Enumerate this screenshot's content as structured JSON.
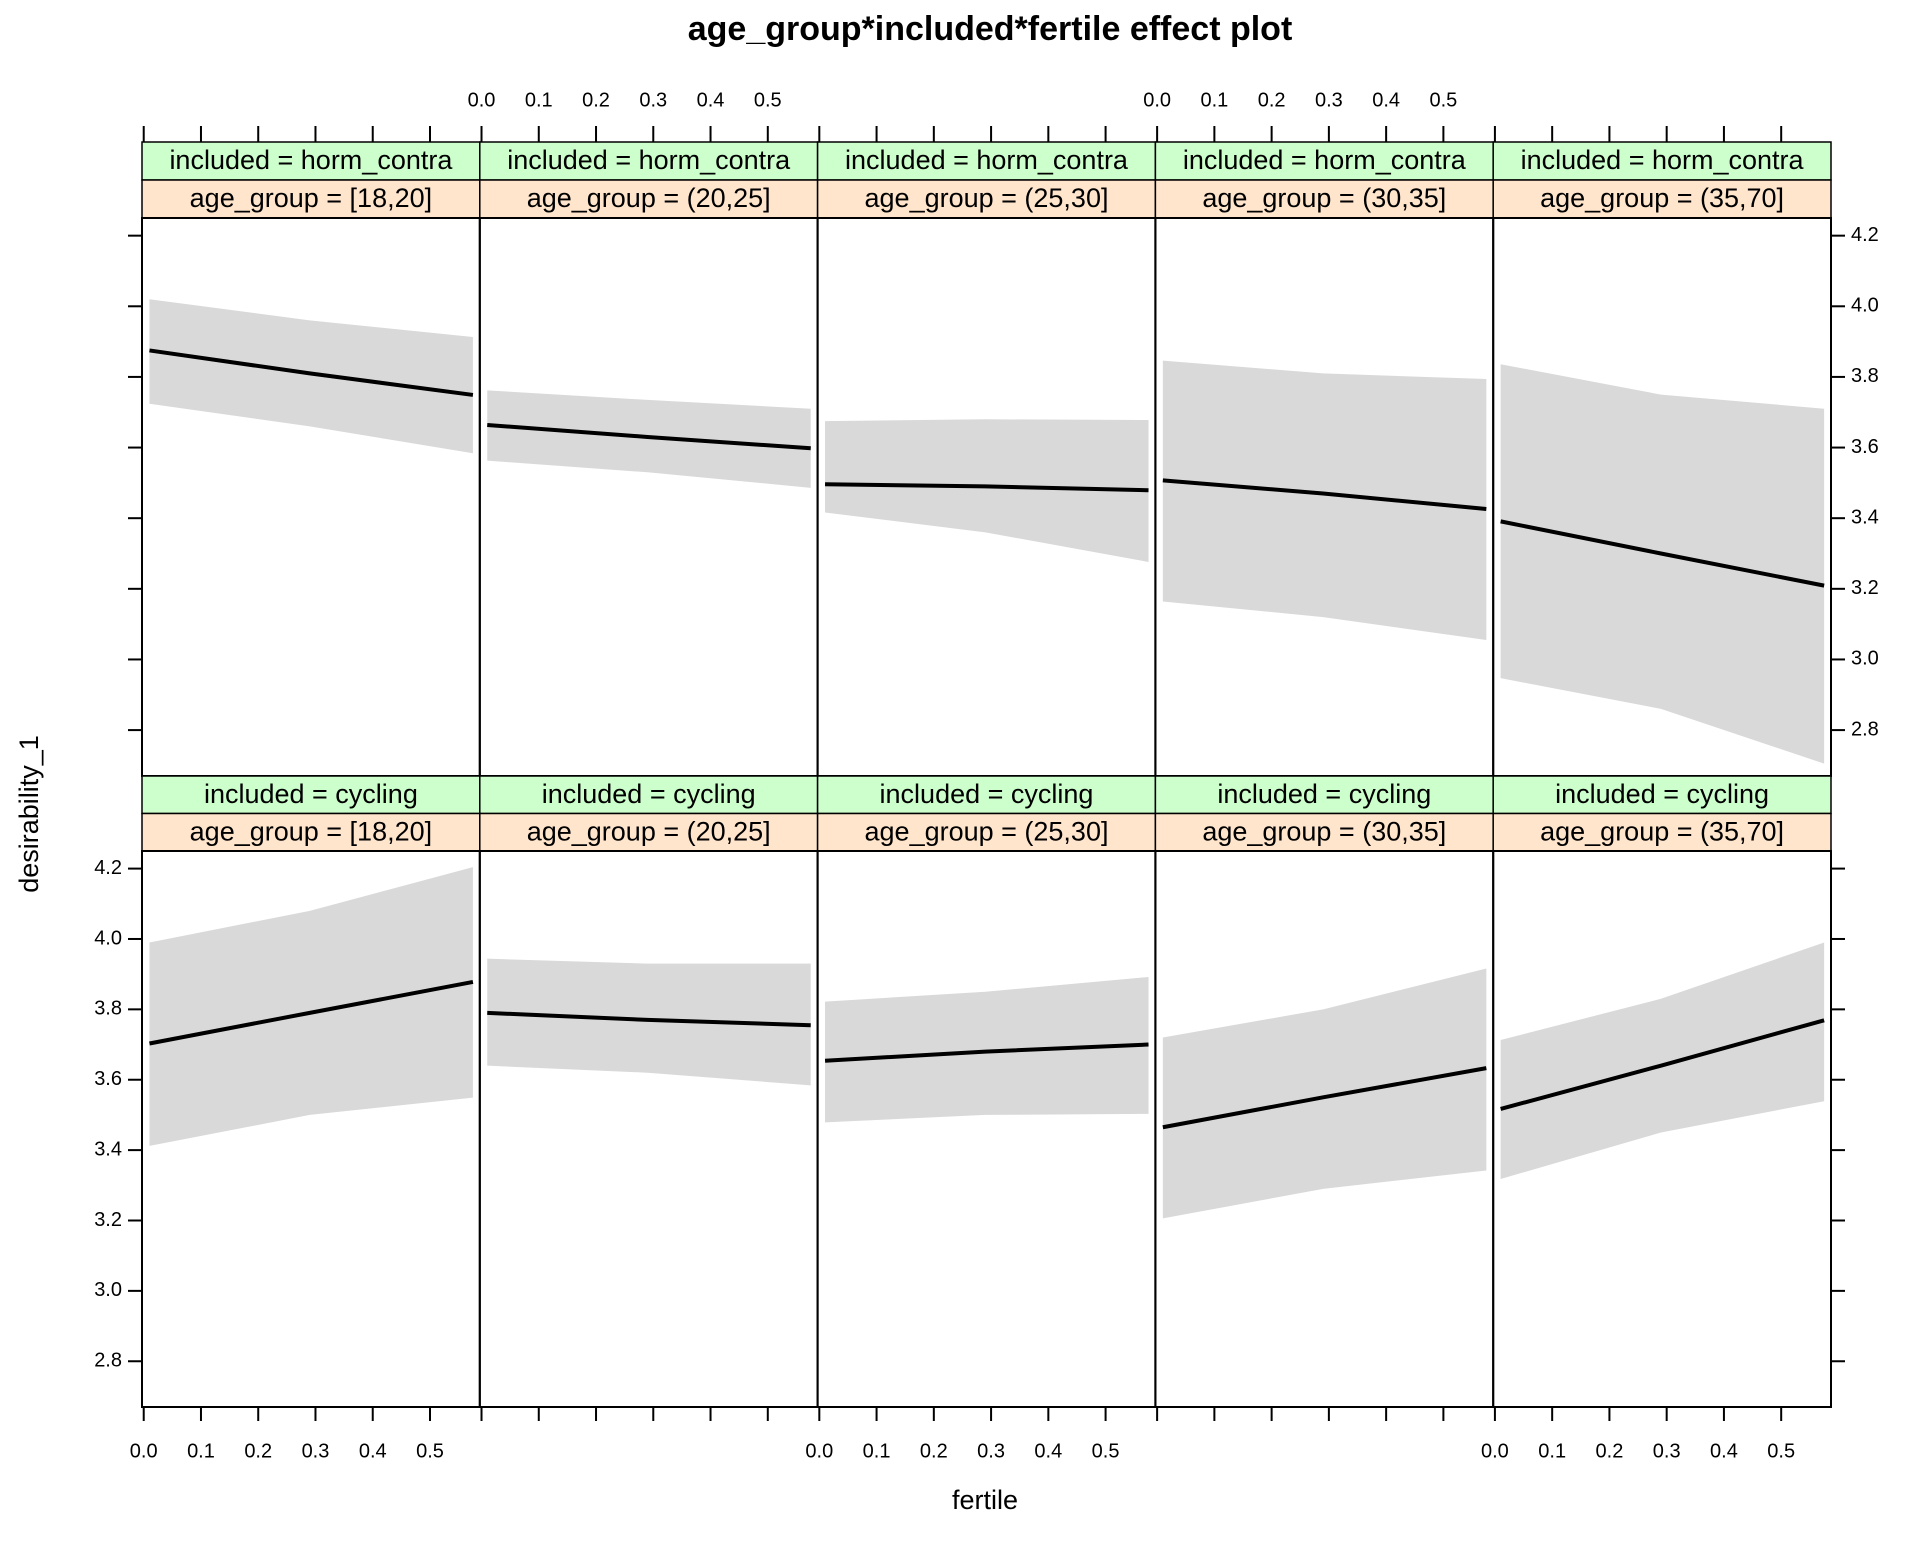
{
  "chart_data": {
    "type": "line",
    "title": "age_group*included*fertile effect plot",
    "xlabel": "fertile",
    "ylabel": "desirability_1",
    "xlim": [
      -0.003,
      0.587
    ],
    "ylim": [
      2.67,
      4.25
    ],
    "xticks": [
      {
        "value": 0,
        "label": "0.0"
      },
      0.1,
      0.2,
      0.3,
      0.4,
      0.5
    ],
    "yticks": [
      2.8,
      {
        "value": 3,
        "label": "3.0"
      },
      3.2,
      3.4,
      3.6,
      3.8,
      {
        "value": 4,
        "label": "4.0"
      },
      4.2
    ],
    "line_color": "#000000",
    "band_color": "#d9d9d9",
    "strip_colors": [
      "#ccffcc",
      "#ffe5cc"
    ],
    "x": [
      0.01,
      0.29,
      0.575
    ],
    "panels": [
      {
        "strips": [
          "included = horm_contra",
          "age_group = [18,20]"
        ],
        "fit": [
          3.875,
          3.81,
          3.749
        ],
        "upper": [
          4.02,
          3.96,
          3.913
        ],
        "lower": [
          3.724,
          3.66,
          3.584
        ]
      },
      {
        "strips": [
          "included = horm_contra",
          "age_group = (20,25]"
        ],
        "fit": [
          3.664,
          3.63,
          3.598
        ],
        "upper": [
          3.762,
          3.735,
          3.71
        ],
        "lower": [
          3.563,
          3.53,
          3.486
        ]
      },
      {
        "strips": [
          "included = horm_contra",
          "age_group = (25,30]"
        ],
        "fit": [
          3.496,
          3.49,
          3.479
        ],
        "upper": [
          3.675,
          3.68,
          3.678
        ],
        "lower": [
          3.416,
          3.36,
          3.276
        ]
      },
      {
        "strips": [
          "included = horm_contra",
          "age_group = (30,35]"
        ],
        "fit": [
          3.507,
          3.47,
          3.426
        ],
        "upper": [
          3.846,
          3.81,
          3.794
        ],
        "lower": [
          3.164,
          3.12,
          3.055
        ]
      },
      {
        "strips": [
          "included = horm_contra",
          "age_group = (35,70]"
        ],
        "fit": [
          3.391,
          3.3,
          3.209
        ],
        "upper": [
          3.836,
          3.75,
          3.71
        ],
        "lower": [
          2.947,
          2.86,
          2.705
        ]
      },
      {
        "strips": [
          "included = cycling",
          "age_group = [18,20]"
        ],
        "fit": [
          3.703,
          3.79,
          3.878
        ],
        "upper": [
          3.99,
          4.08,
          4.204
        ],
        "lower": [
          3.412,
          3.5,
          3.549
        ]
      },
      {
        "strips": [
          "included = cycling",
          "age_group = (20,25]"
        ],
        "fit": [
          3.79,
          3.77,
          3.755
        ],
        "upper": [
          3.944,
          3.93,
          3.93
        ],
        "lower": [
          3.64,
          3.62,
          3.584
        ]
      },
      {
        "strips": [
          "included = cycling",
          "age_group = (25,30]"
        ],
        "fit": [
          3.654,
          3.68,
          3.7
        ],
        "upper": [
          3.822,
          3.85,
          3.892
        ],
        "lower": [
          3.479,
          3.5,
          3.503
        ]
      },
      {
        "strips": [
          "included = cycling",
          "age_group = (30,35]"
        ],
        "fit": [
          3.465,
          3.55,
          3.633
        ],
        "upper": [
          3.72,
          3.8,
          3.916
        ],
        "lower": [
          3.206,
          3.29,
          3.342
        ]
      },
      {
        "strips": [
          "included = cycling",
          "age_group = (35,70]"
        ],
        "fit": [
          3.517,
          3.64,
          3.769
        ],
        "upper": [
          3.713,
          3.83,
          3.99
        ],
        "lower": [
          3.318,
          3.45,
          3.539
        ]
      }
    ]
  }
}
